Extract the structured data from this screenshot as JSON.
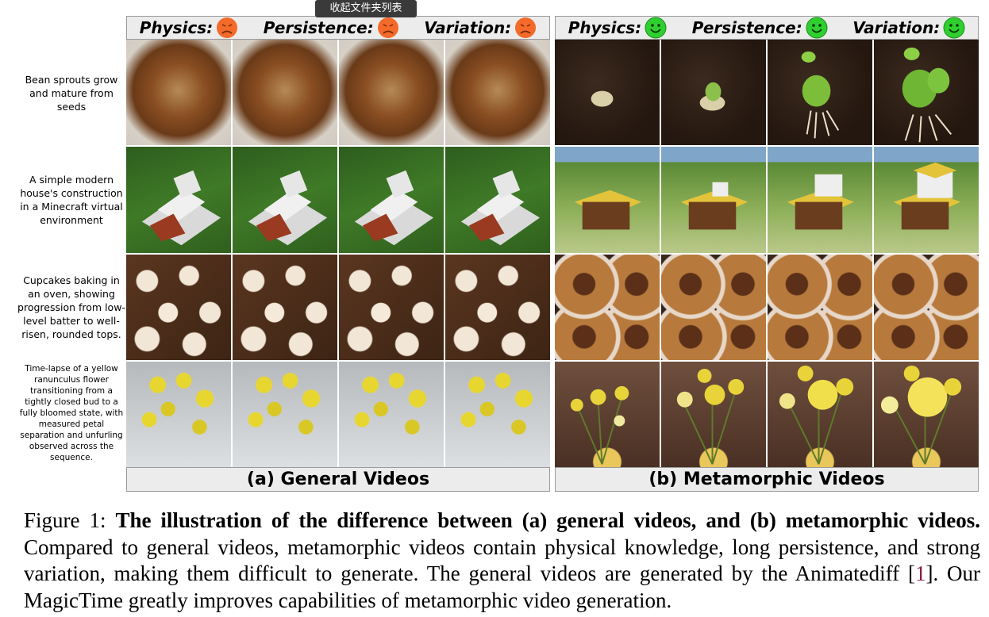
{
  "tooltip": "收起文件夹列表",
  "panel_a": {
    "headers": [
      "Physics:",
      "Persistence:",
      "Variation:"
    ],
    "face_color": "#f36a2a",
    "face_mood": "sad",
    "footer": "(a) General Videos"
  },
  "panel_b": {
    "headers": [
      "Physics:",
      "Persistence:",
      "Variation:"
    ],
    "face_color": "#2fcf2f",
    "face_mood": "happy",
    "footer": "(b) Metamorphic Videos"
  },
  "prompts": [
    "Bean sprouts grow and mature from seeds",
    "A simple modern house's construction in a Minecraft virtual environment",
    "Cupcakes baking in an oven, showing progression from low-level batter to well-risen, rounded tops.",
    "Time-lapse of a yellow ranunculus flower transitioning from a tightly closed bud to a fully bloomed state, with measured petal separation and unfurling observed across the sequence."
  ],
  "caption": {
    "label": "Figure 1:",
    "bold": "The illustration of the difference between (a) general videos, and (b) metamorphic videos.",
    "body_1": "Compared to general videos, metamorphic videos contain physical knowledge, long persistence, and strong variation, making them difficult to generate. The general videos are generated by the Animatediff [",
    "cite": "1",
    "body_2": "]. Our MagicTime greatly improves capabilities of metamorphic video generation."
  }
}
